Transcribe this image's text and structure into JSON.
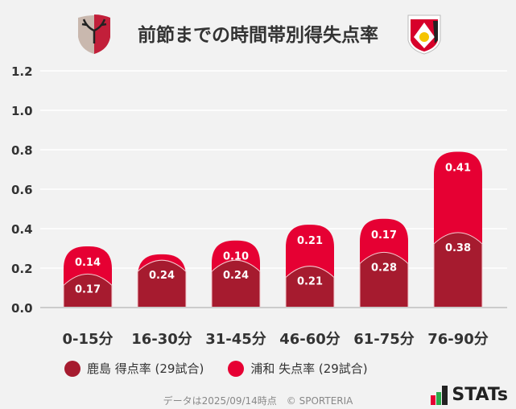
{
  "title": "前節までの時間帯別得失点率",
  "logos": {
    "left": "鹿島アントラーズ crest",
    "right": "浦和レッズ crest"
  },
  "colors": {
    "kashima": "#a61b2f",
    "urawa": "#e60033",
    "background": "#f2f2f2",
    "grid": "#ffffff"
  },
  "chart_data": {
    "type": "bar",
    "stacked": true,
    "categories": [
      "0-15分",
      "16-30分",
      "31-45分",
      "46-60分",
      "61-75分",
      "76-90分"
    ],
    "series": [
      {
        "name": "鹿島 得点率 (29試合)",
        "values": [
          0.17,
          0.24,
          0.24,
          0.21,
          0.28,
          0.38
        ],
        "labels": [
          "0.17",
          "0.24",
          "0.24",
          "0.21",
          "0.28",
          "0.38"
        ]
      },
      {
        "name": "浦和 失点率 (29試合)",
        "values": [
          0.14,
          0.03,
          0.1,
          0.21,
          0.17,
          0.41
        ],
        "labels": [
          "0.14",
          "",
          "0.10",
          "0.21",
          "0.17",
          "0.41"
        ]
      }
    ],
    "yticks": [
      "0.0",
      "0.2",
      "0.4",
      "0.6",
      "0.8",
      "1.0",
      "1.2"
    ],
    "ylim": [
      0,
      1.2
    ],
    "grid": true,
    "legend_position": "bottom-left"
  },
  "legend": {
    "kashima": "鹿島 得点率 (29試合)",
    "urawa": "浦和 失点率 (29試合)"
  },
  "footer": "データは2025/09/14時点　© SPORTERIA",
  "brand": "STATs"
}
